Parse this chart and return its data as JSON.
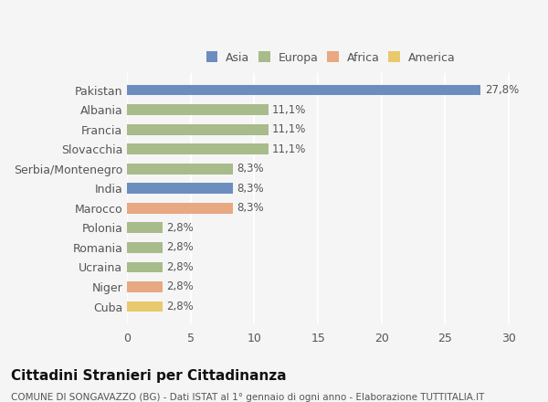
{
  "categories": [
    "Pakistan",
    "Albania",
    "Francia",
    "Slovacchia",
    "Serbia/Montenegro",
    "India",
    "Marocco",
    "Polonia",
    "Romania",
    "Ucraina",
    "Niger",
    "Cuba"
  ],
  "values": [
    27.8,
    11.1,
    11.1,
    11.1,
    8.3,
    8.3,
    8.3,
    2.8,
    2.8,
    2.8,
    2.8,
    2.8
  ],
  "labels": [
    "27,8%",
    "11,1%",
    "11,1%",
    "11,1%",
    "8,3%",
    "8,3%",
    "8,3%",
    "2,8%",
    "2,8%",
    "2,8%",
    "2,8%",
    "2,8%"
  ],
  "colors": [
    "#6b8ebf",
    "#a8bb8a",
    "#a8bb8a",
    "#a8bb8a",
    "#a8bb8a",
    "#6b8ebf",
    "#e8a882",
    "#a8bb8a",
    "#a8bb8a",
    "#a8bb8a",
    "#e8a882",
    "#e8c96e"
  ],
  "legend": [
    {
      "label": "Asia",
      "color": "#6b8ebf"
    },
    {
      "label": "Europa",
      "color": "#a8bb8a"
    },
    {
      "label": "Africa",
      "color": "#e8a882"
    },
    {
      "label": "America",
      "color": "#e8c96e"
    }
  ],
  "xlim": [
    0,
    32
  ],
  "xticks": [
    0,
    5,
    10,
    15,
    20,
    25,
    30
  ],
  "title": "Cittadini Stranieri per Cittadinanza",
  "subtitle": "COMUNE DI SONGAVAZZO (BG) - Dati ISTAT al 1° gennaio di ogni anno - Elaborazione TUTTITALIA.IT",
  "bg_color": "#f5f5f5",
  "bar_height": 0.55,
  "label_fontsize": 8.5,
  "tick_fontsize": 9,
  "title_fontsize": 11,
  "subtitle_fontsize": 7.5
}
